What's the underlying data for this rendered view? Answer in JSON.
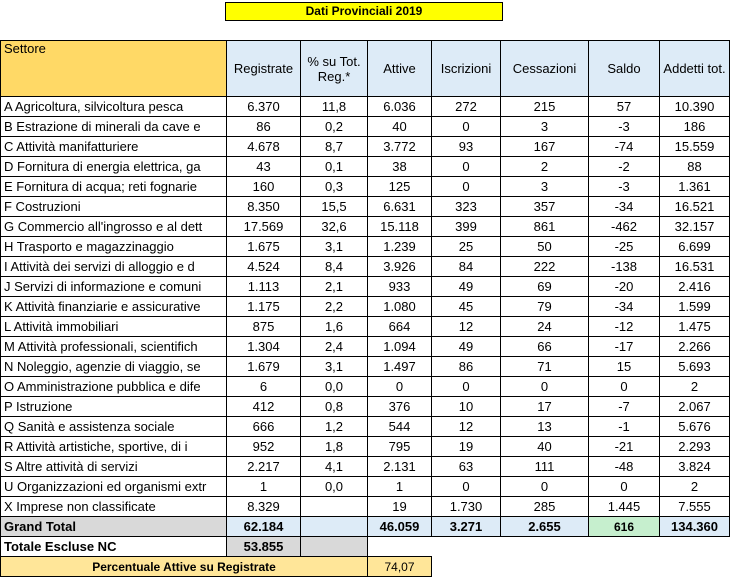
{
  "title": "Dati Provinciali 2019",
  "columns": [
    "Settore",
    "Registrate",
    "% su Tot. Reg.*",
    "Attive",
    "Iscrizioni",
    "Cessazioni",
    "Saldo",
    "Addetti tot."
  ],
  "rows": [
    [
      "A Agricoltura, silvicoltura pesca",
      "6.370",
      "11,8",
      "6.036",
      "272",
      "215",
      "57",
      "10.390"
    ],
    [
      "B Estrazione di minerali da cave e",
      "86",
      "0,2",
      "40",
      "0",
      "3",
      "-3",
      "186"
    ],
    [
      "C Attività manifatturiere",
      "4.678",
      "8,7",
      "3.772",
      "93",
      "167",
      "-74",
      "15.559"
    ],
    [
      "D Fornitura di energia elettrica, ga",
      "43",
      "0,1",
      "38",
      "0",
      "2",
      "-2",
      "88"
    ],
    [
      "E Fornitura di acqua; reti fognarie",
      "160",
      "0,3",
      "125",
      "0",
      "3",
      "-3",
      "1.361"
    ],
    [
      "F Costruzioni",
      "8.350",
      "15,5",
      "6.631",
      "323",
      "357",
      "-34",
      "16.521"
    ],
    [
      "G Commercio all'ingrosso e al dett",
      "17.569",
      "32,6",
      "15.118",
      "399",
      "861",
      "-462",
      "32.157"
    ],
    [
      "H Trasporto e magazzinaggio",
      "1.675",
      "3,1",
      "1.239",
      "25",
      "50",
      "-25",
      "6.699"
    ],
    [
      "I Attività dei servizi di alloggio e d",
      "4.524",
      "8,4",
      "3.926",
      "84",
      "222",
      "-138",
      "16.531"
    ],
    [
      "J Servizi di informazione e comuni",
      "1.113",
      "2,1",
      "933",
      "49",
      "69",
      "-20",
      "2.416"
    ],
    [
      "K Attività finanziarie e assicurative",
      "1.175",
      "2,2",
      "1.080",
      "45",
      "79",
      "-34",
      "1.599"
    ],
    [
      "L Attività immobiliari",
      "875",
      "1,6",
      "664",
      "12",
      "24",
      "-12",
      "1.475"
    ],
    [
      "M Attività professionali, scientifich",
      "1.304",
      "2,4",
      "1.094",
      "49",
      "66",
      "-17",
      "2.266"
    ],
    [
      "N Noleggio, agenzie di viaggio, se",
      "1.679",
      "3,1",
      "1.497",
      "86",
      "71",
      "15",
      "5.693"
    ],
    [
      "O Amministrazione pubblica e dife",
      "6",
      "0,0",
      "0",
      "0",
      "0",
      "0",
      "2"
    ],
    [
      "P Istruzione",
      "412",
      "0,8",
      "376",
      "10",
      "17",
      "-7",
      "2.067"
    ],
    [
      "Q Sanità e assistenza sociale",
      "666",
      "1,2",
      "544",
      "12",
      "13",
      "-1",
      "5.676"
    ],
    [
      "R Attività artistiche, sportive, di i",
      "952",
      "1,8",
      "795",
      "19",
      "40",
      "-21",
      "2.293"
    ],
    [
      "S Altre attività di servizi",
      "2.217",
      "4,1",
      "2.131",
      "63",
      "111",
      "-48",
      "3.824"
    ],
    [
      "U Organizzazioni ed organismi extr",
      "1",
      "0,0",
      "1",
      "0",
      "0",
      "0",
      "2"
    ],
    [
      "X Imprese non classificate",
      "8.329",
      "",
      "19",
      "1.730",
      "285",
      "1.445",
      "7.555"
    ]
  ],
  "grand_total": [
    "Grand Total",
    "62.184",
    "",
    "46.059",
    "3.271",
    "2.655",
    "616",
    "134.360"
  ],
  "totale_escluse": {
    "label": "Totale Escluse NC",
    "value": "53.855"
  },
  "percentuale": {
    "label": "Percentuale Attive su Registrate",
    "value": "74,07"
  },
  "colors": {
    "header_blue": "#ddebf7",
    "settore_yellow": "#ffd966",
    "title_yellow": "#ffff00",
    "saldo_green": "#c6efce",
    "gray": "#d9d9d9",
    "pct_yellow": "#ffe699"
  }
}
